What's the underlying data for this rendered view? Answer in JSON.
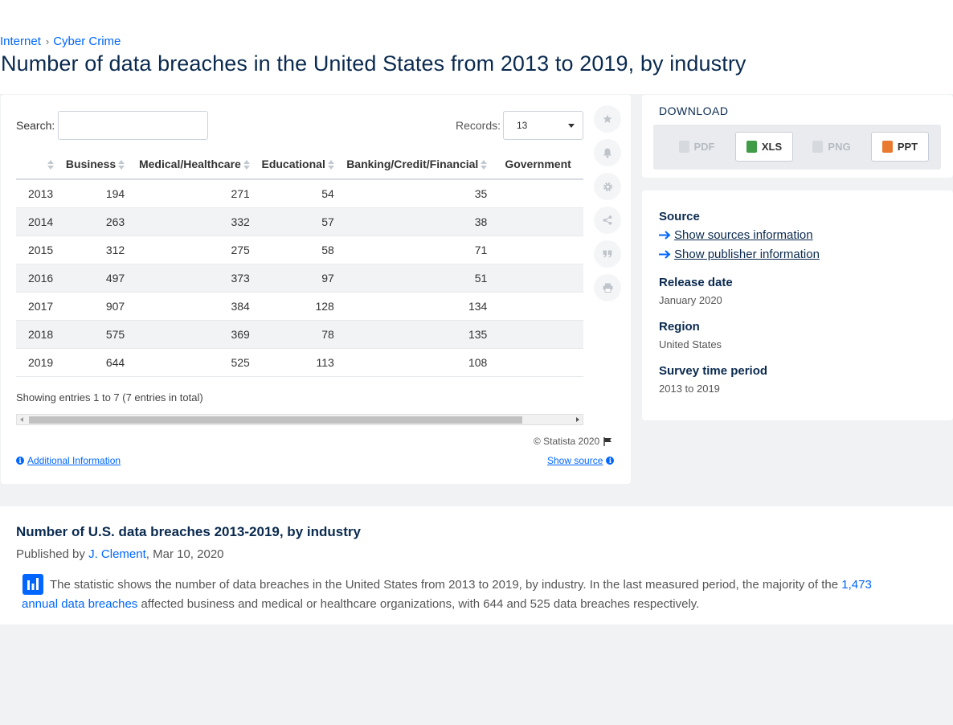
{
  "breadcrumb": {
    "items": [
      "Internet",
      "Cyber Crime"
    ]
  },
  "page_title": "Number of data breaches in the United States from 2013 to 2019, by industry",
  "table_controls": {
    "search_label": "Search:",
    "search_value": "",
    "records_label": "Records:",
    "records_value": "13"
  },
  "table": {
    "headers": [
      "",
      "Business",
      "Medical/Healthcare",
      "Educational",
      "Banking/Credit/Financial",
      "Government"
    ],
    "rows": [
      [
        "2013",
        "194",
        "271",
        "54",
        "35",
        ""
      ],
      [
        "2014",
        "263",
        "332",
        "57",
        "38",
        ""
      ],
      [
        "2015",
        "312",
        "275",
        "58",
        "71",
        ""
      ],
      [
        "2016",
        "497",
        "373",
        "97",
        "51",
        ""
      ],
      [
        "2017",
        "907",
        "384",
        "128",
        "134",
        ""
      ],
      [
        "2018",
        "575",
        "369",
        "78",
        "135",
        ""
      ],
      [
        "2019",
        "644",
        "525",
        "113",
        "108",
        ""
      ]
    ],
    "showing": "Showing entries 1 to 7 (7 entries in total)"
  },
  "footer": {
    "copyright": "© Statista 2020",
    "additional_info": "Additional Information",
    "show_source": "Show source"
  },
  "tools": [
    "star-icon",
    "bell-icon",
    "gear-icon",
    "share-icon",
    "quote-icon",
    "print-icon"
  ],
  "download": {
    "title": "DOWNLOAD",
    "buttons": [
      {
        "label": "PDF",
        "enabled": false
      },
      {
        "label": "XLS",
        "enabled": true
      },
      {
        "label": "PNG",
        "enabled": false
      },
      {
        "label": "PPT",
        "enabled": true
      }
    ]
  },
  "source_info": {
    "source_heading": "Source",
    "show_sources": "Show sources information",
    "show_publisher": "Show publisher information",
    "release_heading": "Release date",
    "release_value": "January 2020",
    "region_heading": "Region",
    "region_value": "United States",
    "survey_heading": "Survey time period",
    "survey_value": "2013 to 2019"
  },
  "description": {
    "title": "Number of U.S. data breaches 2013-2019, by industry",
    "published_prefix": "Published by",
    "author": "J. Clement",
    "date": ", Mar 10, 2020",
    "text_before": "The statistic shows the number of data breaches in the United States from 2013 to 2019, by industry. In the last measured period, the majority of the ",
    "text_link": "1,473 annual data breaches",
    "text_after": " affected business and medical or healthcare organizations, with 644 and 525 data breaches respectively."
  },
  "colors": {
    "accent": "#0066ff",
    "heading": "#0a2a4f"
  }
}
